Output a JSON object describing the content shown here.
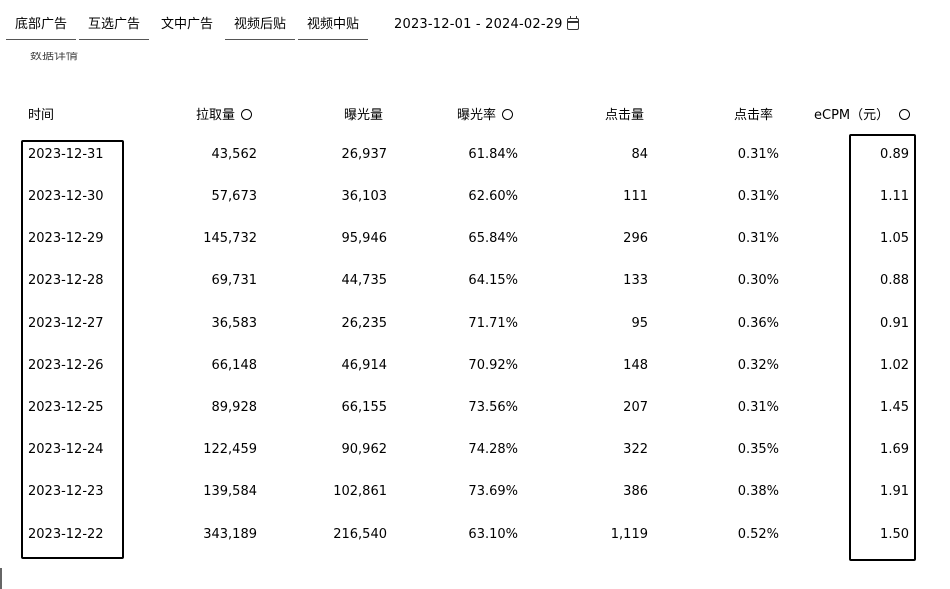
{
  "tabs": [
    {
      "label": "底部广告",
      "active": true
    },
    {
      "label": "互选广告",
      "active": true
    },
    {
      "label": "文中广告",
      "active": false
    },
    {
      "label": "视频后贴",
      "active": true
    },
    {
      "label": "视频中贴",
      "active": true
    }
  ],
  "date_range": "2023-12-01 - 2024-02-29",
  "cut_text": "数据详情",
  "table": {
    "headers": {
      "date": "时间",
      "pull": "拉取量",
      "exposure": "曝光量",
      "exposure_rate": "曝光率",
      "clicks": "点击量",
      "ctr": "点击率",
      "ecpm": "eCPM（元）"
    },
    "rows": [
      {
        "date": "2023-12-31",
        "pull": "43,562",
        "exposure": "26,937",
        "exposure_rate": "61.84%",
        "clicks": "84",
        "ctr": "0.31%",
        "ecpm": "0.89"
      },
      {
        "date": "2023-12-30",
        "pull": "57,673",
        "exposure": "36,103",
        "exposure_rate": "62.60%",
        "clicks": "111",
        "ctr": "0.31%",
        "ecpm": "1.11"
      },
      {
        "date": "2023-12-29",
        "pull": "145,732",
        "exposure": "95,946",
        "exposure_rate": "65.84%",
        "clicks": "296",
        "ctr": "0.31%",
        "ecpm": "1.05"
      },
      {
        "date": "2023-12-28",
        "pull": "69,731",
        "exposure": "44,735",
        "exposure_rate": "64.15%",
        "clicks": "133",
        "ctr": "0.30%",
        "ecpm": "0.88"
      },
      {
        "date": "2023-12-27",
        "pull": "36,583",
        "exposure": "26,235",
        "exposure_rate": "71.71%",
        "clicks": "95",
        "ctr": "0.36%",
        "ecpm": "0.91"
      },
      {
        "date": "2023-12-26",
        "pull": "66,148",
        "exposure": "46,914",
        "exposure_rate": "70.92%",
        "clicks": "148",
        "ctr": "0.32%",
        "ecpm": "1.02"
      },
      {
        "date": "2023-12-25",
        "pull": "89,928",
        "exposure": "66,155",
        "exposure_rate": "73.56%",
        "clicks": "207",
        "ctr": "0.31%",
        "ecpm": "1.45"
      },
      {
        "date": "2023-12-24",
        "pull": "122,459",
        "exposure": "90,962",
        "exposure_rate": "74.28%",
        "clicks": "322",
        "ctr": "0.35%",
        "ecpm": "1.69"
      },
      {
        "date": "2023-12-23",
        "pull": "139,584",
        "exposure": "102,861",
        "exposure_rate": "73.69%",
        "clicks": "386",
        "ctr": "0.38%",
        "ecpm": "1.91"
      },
      {
        "date": "2023-12-22",
        "pull": "343,189",
        "exposure": "216,540",
        "exposure_rate": "63.10%",
        "clicks": "1,119",
        "ctr": "0.52%",
        "ecpm": "1.50"
      }
    ]
  },
  "icons": {
    "info": "info-circle-icon",
    "calendar": "calendar-icon"
  }
}
